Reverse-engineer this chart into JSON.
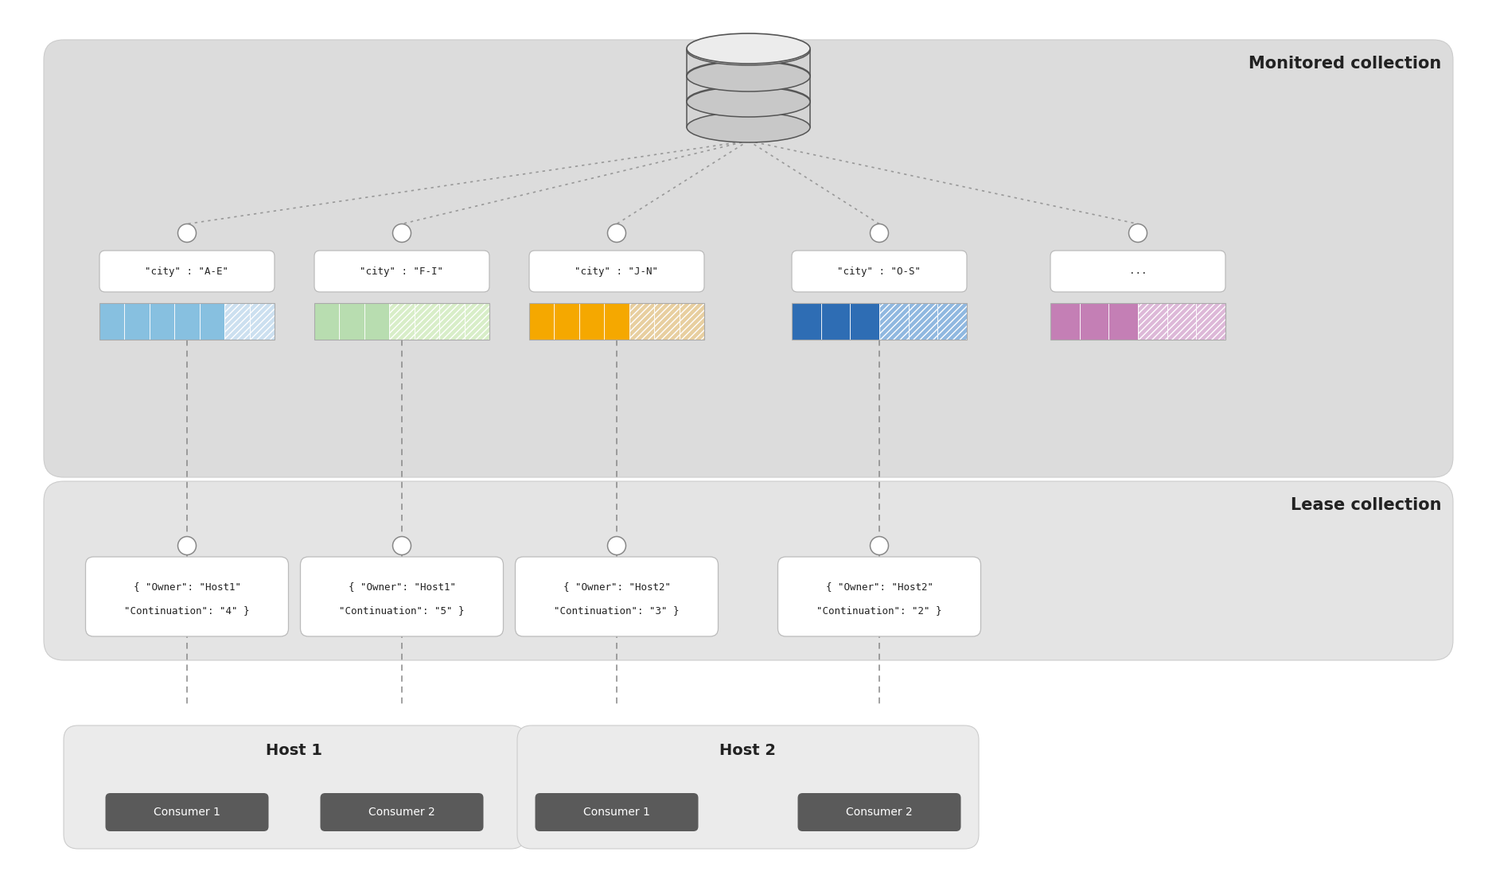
{
  "white": "#ffffff",
  "text_color": "#222222",
  "monitored_bg": "#dcdcdc",
  "lease_bg": "#e4e4e4",
  "host_bg": "#ebebeb",
  "consumer_bg": "#5a5a5a",
  "consumer_text": "#ffffff",
  "panel_edge": "#cccccc",
  "partition_colors": [
    "#87c0e0",
    "#b8ddb0",
    "#f5a800",
    "#2e6db4",
    "#c47fb5"
  ],
  "partition_hatch_colors": [
    "#cce0f0",
    "#d8eec8",
    "#e8cfa0",
    "#90b8e0",
    "#ddb8d8"
  ],
  "partition_labels": [
    "\"city\" : \"A-E\"",
    "\"city\" : \"F-I\"",
    "\"city\" : \"J-N\"",
    "\"city\" : \"O-S\"",
    "..."
  ],
  "lease_texts": [
    "{ \"Owner\": \"Host1\"\n\"Continuation\": \"4\" }",
    "{ \"Owner\": \"Host1\"\n\"Continuation\": \"5\" }",
    "{ \"Owner\": \"Host2\"\n\"Continuation\": \"3\" }",
    "{ \"Owner\": \"Host2\"\n\"Continuation\": \"2\" }"
  ],
  "monitored_label": "Monitored collection",
  "lease_label": "Lease collection",
  "part_solid": [
    5,
    3,
    4,
    3,
    3
  ],
  "part_hatch": [
    2,
    4,
    3,
    3,
    3
  ],
  "fig_width": 18.81,
  "fig_height": 11.05
}
